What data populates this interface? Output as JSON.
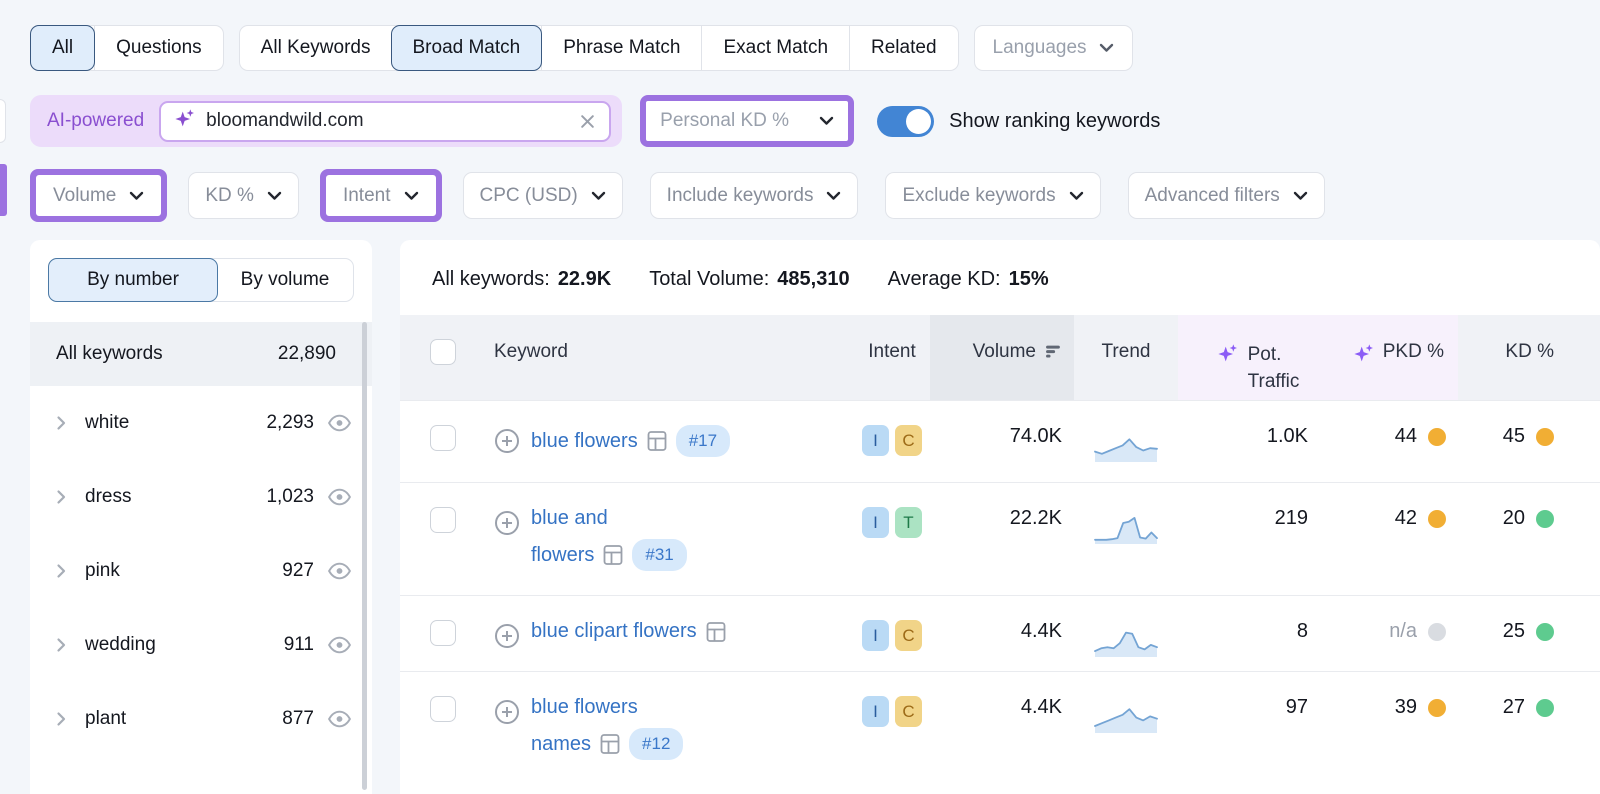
{
  "colors": {
    "accent_purple": "#9c72e0",
    "link_blue": "#3573c4",
    "toggle_blue": "#4285d4",
    "selected_tab_bg": "#e0edfb",
    "sparkle_purple": "#8a4fd0",
    "dot_colors": {
      "orange": "#f1ae34",
      "green": "#5ecb8f",
      "gray": "#d9dce1"
    },
    "intent_styles": {
      "I": {
        "bg": "#badaf5",
        "fg": "#2a5d9e"
      },
      "C": {
        "bg": "#f1d488",
        "fg": "#9c6a17"
      },
      "T": {
        "bg": "#abe3c3",
        "fg": "#1d7a48"
      }
    }
  },
  "top_tabs": {
    "group1": [
      {
        "label": "All",
        "selected": true
      },
      {
        "label": "Questions",
        "selected": false
      }
    ],
    "group2": [
      {
        "label": "All Keywords",
        "selected": false
      },
      {
        "label": "Broad Match",
        "selected": true
      },
      {
        "label": "Phrase Match",
        "selected": false
      },
      {
        "label": "Exact Match",
        "selected": false
      },
      {
        "label": "Related",
        "selected": false
      }
    ],
    "languages_label": "Languages"
  },
  "search_bar": {
    "ai_badge": "AI-powered",
    "query": "bloomandwild.com",
    "kd_dropdown_label": "Personal KD %",
    "toggle_label": "Show ranking keywords",
    "toggle_on": true
  },
  "filters": [
    {
      "label": "Volume",
      "highlighted": true
    },
    {
      "label": "KD %",
      "highlighted": false
    },
    {
      "label": "Intent",
      "highlighted": true
    },
    {
      "label": "CPC (USD)",
      "highlighted": false
    },
    {
      "label": "Include keywords",
      "highlighted": false
    },
    {
      "label": "Exclude keywords",
      "highlighted": false
    },
    {
      "label": "Advanced filters",
      "highlighted": false
    }
  ],
  "sidebar": {
    "tabs": [
      {
        "label": "By number",
        "selected": true
      },
      {
        "label": "By volume",
        "selected": false
      }
    ],
    "all_keywords": {
      "label": "All keywords",
      "count": "22,890"
    },
    "groups": [
      {
        "label": "white",
        "count": "2,293"
      },
      {
        "label": "dress",
        "count": "1,023"
      },
      {
        "label": "pink",
        "count": "927"
      },
      {
        "label": "wedding",
        "count": "911"
      },
      {
        "label": "plant",
        "count": "877"
      }
    ]
  },
  "summary": [
    {
      "label": "All keywords:",
      "value": "22.9K"
    },
    {
      "label": "Total Volume:",
      "value": "485,310"
    },
    {
      "label": "Average KD:",
      "value": "15%"
    }
  ],
  "table": {
    "headers": {
      "keyword": "Keyword",
      "intent": "Intent",
      "volume": "Volume",
      "trend": "Trend",
      "pot_traffic_line1": "Pot.",
      "pot_traffic_line2": "Traffic",
      "pkd": "PKD %",
      "kd": "KD %"
    },
    "rows": [
      {
        "keyword_lines": [
          "blue flowers"
        ],
        "rank": "#17",
        "intents": [
          "I",
          "C"
        ],
        "volume": "74.0K",
        "trend": [
          30,
          22,
          32,
          42,
          52,
          74,
          46,
          34,
          42,
          40
        ],
        "pot_traffic": "1.0K",
        "pkd": "44",
        "pkd_dot": "orange",
        "kd": "45",
        "kd_dot": "orange"
      },
      {
        "keyword_lines": [
          "blue and",
          "flowers"
        ],
        "rank": "#31",
        "intents": [
          "I",
          "T"
        ],
        "volume": "22.2K",
        "trend": [
          8,
          8,
          8,
          10,
          14,
          68,
          72,
          86,
          16,
          12,
          34,
          14
        ],
        "pot_traffic": "219",
        "pkd": "42",
        "pkd_dot": "orange",
        "kd": "20",
        "kd_dot": "green"
      },
      {
        "keyword_lines": [
          "blue clipart flowers"
        ],
        "rank": null,
        "intents": [
          "I",
          "C"
        ],
        "volume": "4.4K",
        "trend": [
          14,
          24,
          28,
          24,
          42,
          80,
          76,
          28,
          20,
          36,
          28
        ],
        "pot_traffic": "8",
        "pkd": "n/a",
        "pkd_dot": "gray",
        "kd": "25",
        "kd_dot": "green"
      },
      {
        "keyword_lines": [
          "blue flowers",
          "names"
        ],
        "rank": "#12",
        "intents": [
          "I",
          "C"
        ],
        "volume": "4.4K",
        "trend": [
          18,
          28,
          38,
          48,
          58,
          78,
          48,
          38,
          52,
          44
        ],
        "pot_traffic": "97",
        "pkd": "39",
        "pkd_dot": "orange",
        "kd": "27",
        "kd_dot": "green"
      }
    ]
  }
}
